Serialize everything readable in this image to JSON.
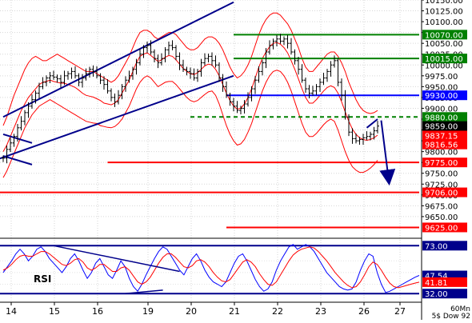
{
  "chart_data": [
    {
      "type": "line",
      "panel": "price",
      "subtype": "bar-ohlc",
      "y_axis_side": "right",
      "ylim": [
        9600,
        10150
      ],
      "y_ticks": [
        9650,
        9675,
        9700,
        9725,
        9750,
        9775,
        9800,
        9825,
        9850,
        9875,
        9900,
        9925,
        9950,
        9975,
        10000,
        10025,
        10050,
        10075,
        10100,
        10125,
        10150
      ],
      "y_tick_labels": [
        "9650.00",
        "9675.00",
        "9700.00",
        "9725.00",
        "9750.00",
        "9775.00",
        "9800.00",
        "9825.00",
        "9850.00",
        "9875.00",
        "9900.00",
        "9925.00",
        "9950.00",
        "9975.00",
        "10000.00",
        "10025.00",
        "10050.00",
        "10075.00",
        "10100.00",
        "10125.00",
        "10150.00"
      ],
      "x_tick_labels": [
        "14",
        "15",
        "16",
        "19",
        "20",
        "21",
        "22",
        "23",
        "26",
        "27"
      ],
      "grid": true,
      "series": [
        {
          "kind": "price-bars",
          "color": "#000000",
          "values": [
            9785,
            9805,
            9820,
            9835,
            9855,
            9870,
            9890,
            9905,
            9920,
            9935,
            9950,
            9960,
            9970,
            9975,
            9972,
            9968,
            9960,
            9975,
            9980,
            9985,
            9975,
            9960,
            9970,
            9980,
            9990,
            9985,
            9975,
            9965,
            9955,
            9940,
            9925,
            9915,
            9930,
            9950,
            9965,
            9975,
            9990,
            10005,
            10025,
            10040,
            10045,
            10030,
            10015,
            10005,
            10015,
            10035,
            10045,
            10040,
            10020,
            10000,
            9990,
            9985,
            9980,
            9970,
            9985,
            10005,
            10015,
            10020,
            10010,
            10000,
            9970,
            9950,
            9930,
            9915,
            9905,
            9895,
            9900,
            9910,
            9925,
            9945,
            9965,
            9985,
            10005,
            10030,
            10045,
            10055,
            10060,
            10055,
            10060,
            10050,
            10030,
            10010,
            9990,
            9965,
            9945,
            9935,
            9940,
            9950,
            9960,
            9970,
            9985,
            10000,
            10010,
            9960,
            9930,
            9880,
            9845,
            9830,
            9825,
            9828,
            9832,
            9835,
            9840,
            9848,
            9859
          ]
        }
      ],
      "bands": {
        "color": "#ff0000",
        "upper": [
          9860,
          9880,
          9905,
          9930,
          9950,
          9970,
          9990,
          10005,
          10015,
          10020,
          10015,
          10010,
          10010,
          10015,
          10020,
          10025,
          10020,
          10015,
          10010,
          10005,
          10000,
          9995,
          9990,
          9985,
          9985,
          9985,
          9980,
          9975,
          9970,
          9965,
          9960,
          9965,
          9975,
          9990,
          10005,
          10020,
          10040,
          10060,
          10075,
          10080,
          10080,
          10075,
          10065,
          10060,
          10065,
          10070,
          10075,
          10075,
          10070,
          10060,
          10050,
          10040,
          10035,
          10035,
          10040,
          10050,
          10060,
          10065,
          10065,
          10060,
          10050,
          10035,
          10015,
          9995,
          9980,
          9970,
          9975,
          9985,
          10000,
          10020,
          10045,
          10070,
          10090,
          10105,
          10115,
          10120,
          10120,
          10115,
          10105,
          10095,
          10080,
          10060,
          10040,
          10015,
          9995,
          9985,
          9985,
          9995,
          10005,
          10015,
          10025,
          10030,
          10030,
          10020,
          10005,
          9985,
          9960,
          9940,
          9920,
          9905,
          9895,
          9890,
          9888,
          9890,
          9895
        ],
        "lower": [
          9740,
          9755,
          9775,
          9795,
          9815,
          9835,
          9855,
          9870,
          9885,
          9895,
          9905,
          9910,
          9915,
          9920,
          9915,
          9910,
          9905,
          9900,
          9895,
          9890,
          9885,
          9880,
          9875,
          9870,
          9868,
          9866,
          9865,
          9860,
          9858,
          9856,
          9855,
          9858,
          9865,
          9875,
          9890,
          9905,
          9925,
          9945,
          9960,
          9970,
          9975,
          9970,
          9960,
          9950,
          9955,
          9960,
          9962,
          9962,
          9955,
          9945,
          9935,
          9925,
          9918,
          9915,
          9918,
          9925,
          9932,
          9938,
          9940,
          9930,
          9910,
          9885,
          9860,
          9840,
          9825,
          9815,
          9818,
          9828,
          9845,
          9865,
          9890,
          9915,
          9940,
          9960,
          9975,
          9985,
          9988,
          9985,
          9975,
          9960,
          9940,
          9915,
          9890,
          9865,
          9845,
          9835,
          9835,
          9842,
          9852,
          9862,
          9870,
          9875,
          9870,
          9850,
          9825,
          9800,
          9780,
          9765,
          9757,
          9752,
          9752,
          9756,
          9762,
          9770,
          9780
        ]
      },
      "ma": {
        "color": "#ff0000",
        "values": [
          9800,
          9815,
          9835,
          9855,
          9875,
          9895,
          9910,
          9925,
          9935,
          9945,
          9955,
          9960,
          9962,
          9965,
          9962,
          9960,
          9958,
          9958,
          9955,
          9952,
          9948,
          9942,
          9935,
          9930,
          9928,
          9926,
          9922,
          9918,
          9912,
          9910,
          9908,
          9912,
          9920,
          9935,
          9950,
          9965,
          9985,
          10005,
          10020,
          10025,
          10028,
          10022,
          10015,
          10008,
          10012,
          10018,
          10022,
          10020,
          10012,
          10002,
          9992,
          9985,
          9980,
          9978,
          9982,
          9990,
          9998,
          10002,
          10000,
          9990,
          9975,
          9955,
          9935,
          9918,
          9905,
          9898,
          9900,
          9910,
          9925,
          9945,
          9970,
          9995,
          10015,
          10030,
          10042,
          10050,
          10052,
          10048,
          10040,
          10028,
          10010,
          9990,
          9968,
          9945,
          9925,
          9912,
          9912,
          9920,
          9930,
          9940,
          9948,
          9952,
          9948,
          9935,
          9915,
          9892,
          9870,
          9852,
          9840,
          9832,
          9828,
          9826,
          9828,
          9832,
          9838
        ]
      },
      "channel": {
        "color": "#00008b",
        "upper": [
          [
            0,
            9880
          ],
          [
            64,
            10145
          ]
        ],
        "lower": [
          [
            -4,
            9775
          ],
          [
            64,
            9975
          ]
        ],
        "left_fragment": [
          [
            0,
            9840
          ],
          [
            8,
            9820
          ]
        ],
        "left_fragment_lower": [
          [
            0,
            9790
          ],
          [
            8,
            9770
          ]
        ]
      },
      "levels": [
        {
          "value": 10070,
          "label": "10070.00",
          "line_color": "#008000",
          "label_bg": "#008000",
          "label_fg": "#ffffff",
          "from_index": 64
        },
        {
          "value": 10015,
          "label": "10015.00",
          "line_color": "#008000",
          "label_bg": "#008000",
          "label_fg": "#ffffff",
          "from_index": 64
        },
        {
          "value": 9930,
          "label": "9930.00",
          "line_color": "#0000ff",
          "label_bg": "#0000ff",
          "label_fg": "#ffffff",
          "from_index": 62
        },
        {
          "value": 9880,
          "label": "9880.00",
          "line_color": "#008000",
          "label_bg": "#008000",
          "label_fg": "#ffffff",
          "dashed": true,
          "from_index": 52
        },
        {
          "value": 9775,
          "label": "9775.00",
          "line_color": "#ff0000",
          "label_bg": "#ff0000",
          "label_fg": "#ffffff",
          "from_index": 29
        },
        {
          "value": 9706,
          "label": "9706.00",
          "line_color": "#ff0000",
          "label_bg": "#ff0000",
          "label_fg": "#ffffff",
          "from_index": -4
        },
        {
          "value": 9625,
          "label": "9625.00",
          "line_color": "#ff0000",
          "label_bg": "#ff0000",
          "label_fg": "#ffffff",
          "from_index": 62
        }
      ],
      "value_tags": [
        {
          "value": 9859,
          "label": "9859.00",
          "bg": "#000000",
          "fg": "#ffffff"
        },
        {
          "value": 9837.15,
          "label": "9837.15",
          "bg": "#ff0000",
          "fg": "#ffffff"
        },
        {
          "value": 9816.56,
          "label": "9816.56",
          "bg": "#ff0000",
          "fg": "#ffffff"
        }
      ],
      "arrows": [
        {
          "from": [
            101,
            9855
          ],
          "to": [
            104,
            9875
          ],
          "color": "#00008b"
        },
        {
          "from": [
            105,
            9872
          ],
          "to": [
            107,
            9740
          ],
          "color": "#00008b"
        }
      ]
    },
    {
      "type": "line",
      "panel": "rsi",
      "label": "RSI",
      "ylim": [
        26,
        78
      ],
      "levels": [
        {
          "value": 73,
          "label": "73.00",
          "color": "#00008b"
        },
        {
          "value": 32,
          "label": "32.00",
          "color": "#00008b"
        }
      ],
      "value_tags": [
        {
          "value": 47.54,
          "label": "47.54",
          "bg": "#00008b",
          "fg": "#ffffff"
        },
        {
          "value": 41.81,
          "label": "41.81",
          "bg": "#ff0000",
          "fg": "#ffffff"
        }
      ],
      "trendlines": [
        {
          "points": [
            [
              12,
              73
            ],
            [
              42,
              51
            ]
          ],
          "color": "#00008b"
        },
        {
          "points": [
            [
              29,
              32
            ],
            [
              38,
              35
            ]
          ],
          "color": "#00008b"
        }
      ],
      "series": [
        {
          "color": "#0000ff",
          "values": [
            50,
            55,
            60,
            66,
            70,
            66,
            60,
            64,
            70,
            72,
            68,
            62,
            58,
            54,
            50,
            55,
            62,
            66,
            60,
            52,
            45,
            50,
            58,
            62,
            55,
            48,
            45,
            52,
            60,
            55,
            45,
            38,
            34,
            40,
            48,
            55,
            62,
            68,
            72,
            70,
            64,
            58,
            52,
            48,
            55,
            62,
            66,
            60,
            52,
            46,
            42,
            40,
            38,
            42,
            50,
            58,
            64,
            66,
            60,
            52,
            44,
            38,
            34,
            36,
            42,
            52,
            60,
            66,
            72,
            74,
            70,
            72,
            74,
            72,
            68,
            62,
            56,
            50,
            46,
            42,
            38,
            36,
            35,
            36,
            42,
            52,
            60,
            66,
            64,
            50,
            40,
            33,
            34,
            36,
            38,
            40,
            42,
            44,
            46,
            47.54
          ]
        },
        {
          "color": "#ff0000",
          "values": [
            52,
            54,
            57,
            61,
            64,
            65,
            64,
            64,
            66,
            68,
            68,
            66,
            63,
            60,
            57,
            56,
            58,
            61,
            62,
            59,
            54,
            52,
            54,
            57,
            57,
            54,
            51,
            51,
            54,
            55,
            52,
            47,
            42,
            40,
            42,
            46,
            52,
            58,
            63,
            66,
            66,
            63,
            59,
            55,
            54,
            56,
            60,
            61,
            59,
            55,
            50,
            46,
            43,
            42,
            44,
            49,
            54,
            59,
            61,
            59,
            55,
            49,
            44,
            40,
            39,
            42,
            48,
            54,
            60,
            65,
            68,
            70,
            71,
            72,
            71,
            68,
            64,
            60,
            55,
            50,
            46,
            42,
            39,
            37,
            38,
            42,
            48,
            55,
            59,
            57,
            52,
            46,
            41,
            38,
            37,
            38,
            39,
            40,
            41,
            41.81
          ]
        }
      ]
    }
  ],
  "bottom_right_label": "60Mn\n5$ Dow 92"
}
